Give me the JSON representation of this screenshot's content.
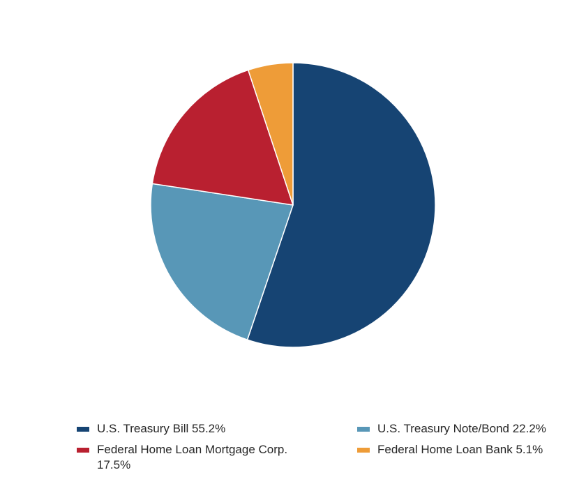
{
  "chart_data": {
    "type": "pie",
    "title": "",
    "slices": [
      {
        "label": "U.S. Treasury Bill 55.2%",
        "name": "U.S. Treasury Bill",
        "value": 55.2,
        "color": "#164473"
      },
      {
        "label": "U.S. Treasury Note/Bond 22.2%",
        "name": "U.S. Treasury Note/Bond",
        "value": 22.2,
        "color": "#5897b7"
      },
      {
        "label": "Federal Home Loan Mortgage Corp.\n17.5%",
        "name": "Federal Home Loan Mortgage Corp.",
        "value": 17.5,
        "color": "#b92030"
      },
      {
        "label": "Federal Home Loan Bank 5.1%",
        "name": "Federal Home Loan Bank",
        "value": 5.1,
        "color": "#ee9c38"
      }
    ],
    "legend_position": "bottom",
    "legend_order": [
      0,
      1,
      2,
      3
    ]
  }
}
